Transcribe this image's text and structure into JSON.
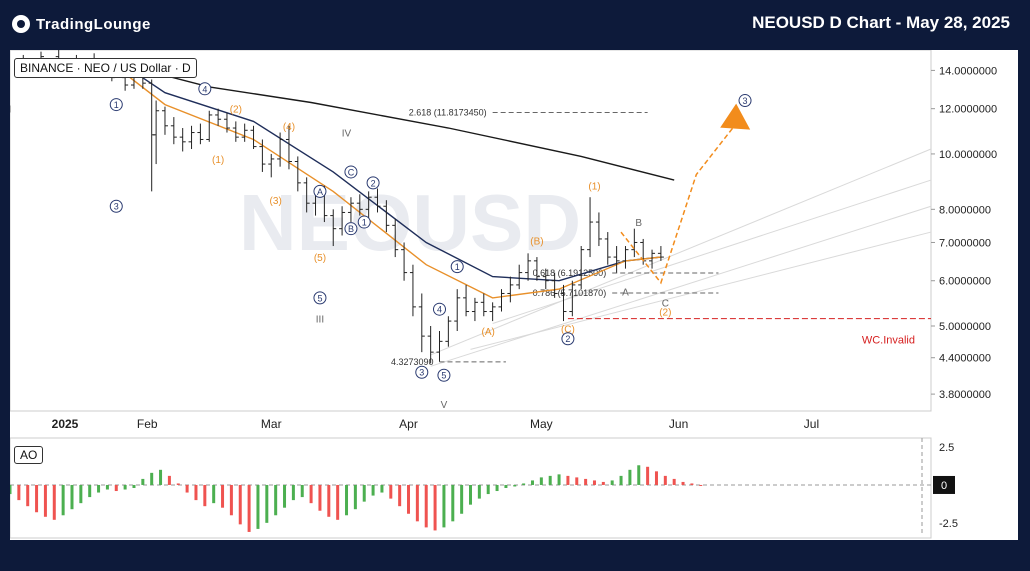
{
  "header": {
    "logo_text": "TradingLounge",
    "title": "NEOUSD D Chart - May 28, 2025"
  },
  "symbol_label": "BINANCE · NEO / US Dollar · D",
  "watermark": "NEOUSD",
  "indicator_label": "AO",
  "chart_data": {
    "type": "candlestick",
    "price_axis": {
      "scale": "log",
      "ticks": [
        "14.0000000",
        "12.0000000",
        "10.0000000",
        "8.0000000",
        "7.0000000",
        "6.0000000",
        "5.0000000",
        "4.4000000",
        "3.8000000"
      ],
      "tick_values": [
        14,
        12,
        10,
        8,
        7,
        6,
        5,
        4.4,
        3.8
      ],
      "ylim": [
        3.55,
        15.2
      ]
    },
    "time_axis": {
      "labels": [
        "2025",
        "Feb",
        "Mar",
        "Apr",
        "May",
        "Jun",
        "Jul"
      ],
      "xlim": [
        "2025-01-01",
        "2025-07-28"
      ]
    },
    "ao_axis": {
      "ticks": [
        "2.5",
        "0",
        "-2.5"
      ],
      "tick_values": [
        2.5,
        0,
        -2.5
      ],
      "ylim": [
        -3.5,
        3.1
      ]
    },
    "ohlc_series": [
      [
        "2025-01-04",
        14.3,
        14.9,
        14.0,
        14.6
      ],
      [
        "2025-01-08",
        14.6,
        15.1,
        14.2,
        14.8
      ],
      [
        "2025-01-12",
        14.8,
        15.2,
        14.1,
        14.4
      ],
      [
        "2025-01-16",
        14.4,
        14.9,
        13.9,
        14.6
      ],
      [
        "2025-01-20",
        14.6,
        15.0,
        14.0,
        14.3
      ],
      [
        "2025-01-24",
        14.3,
        14.7,
        13.4,
        13.6
      ],
      [
        "2025-01-27",
        13.6,
        13.9,
        12.9,
        13.2
      ],
      [
        "2025-01-29",
        13.2,
        14.2,
        13.0,
        13.9
      ],
      [
        "2025-01-31",
        13.9,
        14.1,
        13.0,
        13.3
      ],
      [
        "2025-02-02",
        13.3,
        13.5,
        8.6,
        10.8
      ],
      [
        "2025-02-03",
        10.8,
        12.4,
        9.6,
        11.9
      ],
      [
        "2025-02-05",
        11.9,
        12.1,
        10.8,
        11.2
      ],
      [
        "2025-02-07",
        11.2,
        11.6,
        10.4,
        10.7
      ],
      [
        "2025-02-09",
        10.7,
        11.1,
        10.1,
        10.5
      ],
      [
        "2025-02-11",
        10.5,
        11.2,
        10.2,
        10.9
      ],
      [
        "2025-02-13",
        10.9,
        11.3,
        10.4,
        10.6
      ],
      [
        "2025-02-15",
        10.6,
        11.9,
        10.5,
        11.7
      ],
      [
        "2025-02-17",
        11.7,
        12.0,
        11.2,
        11.5
      ],
      [
        "2025-02-19",
        11.5,
        11.8,
        10.9,
        11.1
      ],
      [
        "2025-02-21",
        11.1,
        11.4,
        10.5,
        10.7
      ],
      [
        "2025-02-23",
        10.7,
        11.3,
        10.5,
        11.0
      ],
      [
        "2025-02-25",
        11.0,
        11.2,
        10.2,
        10.3
      ],
      [
        "2025-02-27",
        10.3,
        10.6,
        9.3,
        9.6
      ],
      [
        "2025-03-01",
        9.6,
        10.0,
        9.1,
        9.8
      ],
      [
        "2025-03-03",
        9.8,
        10.9,
        9.5,
        10.6
      ],
      [
        "2025-03-05",
        10.6,
        11.2,
        9.4,
        9.7
      ],
      [
        "2025-03-07",
        9.7,
        9.9,
        8.6,
        8.9
      ],
      [
        "2025-03-09",
        8.9,
        9.1,
        7.9,
        8.2
      ],
      [
        "2025-03-11",
        8.2,
        8.7,
        7.8,
        8.5
      ],
      [
        "2025-03-13",
        8.5,
        8.8,
        7.6,
        7.8
      ],
      [
        "2025-03-15",
        7.8,
        8.0,
        6.9,
        7.4
      ],
      [
        "2025-03-17",
        7.4,
        8.1,
        7.2,
        7.9
      ],
      [
        "2025-03-19",
        7.9,
        8.4,
        7.6,
        8.2
      ],
      [
        "2025-03-21",
        8.2,
        8.5,
        7.8,
        8.0
      ],
      [
        "2025-03-23",
        8.0,
        8.6,
        7.7,
        8.4
      ],
      [
        "2025-03-25",
        8.4,
        8.7,
        7.9,
        8.1
      ],
      [
        "2025-03-27",
        8.1,
        8.3,
        7.3,
        7.5
      ],
      [
        "2025-03-29",
        7.5,
        7.7,
        6.6,
        6.8
      ],
      [
        "2025-03-31",
        6.8,
        7.0,
        6.0,
        6.2
      ],
      [
        "2025-04-02",
        6.2,
        6.4,
        5.2,
        5.4
      ],
      [
        "2025-04-04",
        5.4,
        5.7,
        4.5,
        4.8
      ],
      [
        "2025-04-06",
        4.8,
        5.0,
        4.3,
        4.5
      ],
      [
        "2025-04-08",
        4.5,
        4.9,
        4.33,
        4.7
      ],
      [
        "2025-04-10",
        4.7,
        5.2,
        4.6,
        5.1
      ],
      [
        "2025-04-12",
        5.1,
        5.8,
        4.9,
        5.6
      ],
      [
        "2025-04-14",
        5.6,
        5.9,
        5.2,
        5.3
      ],
      [
        "2025-04-16",
        5.3,
        5.6,
        5.1,
        5.5
      ],
      [
        "2025-04-18",
        5.5,
        5.7,
        5.2,
        5.3
      ],
      [
        "2025-04-20",
        5.3,
        5.5,
        5.1,
        5.4
      ],
      [
        "2025-04-22",
        5.4,
        5.8,
        5.3,
        5.7
      ],
      [
        "2025-04-24",
        5.7,
        6.1,
        5.5,
        5.9
      ],
      [
        "2025-04-26",
        5.9,
        6.4,
        5.8,
        6.2
      ],
      [
        "2025-04-28",
        6.2,
        6.7,
        6.0,
        6.5
      ],
      [
        "2025-04-30",
        6.5,
        6.6,
        6.0,
        6.1
      ],
      [
        "2025-05-02",
        6.1,
        6.3,
        5.8,
        6.0
      ],
      [
        "2025-05-04",
        6.0,
        6.2,
        5.6,
        5.7
      ],
      [
        "2025-05-06",
        5.7,
        5.9,
        5.1,
        5.3
      ],
      [
        "2025-05-08",
        5.3,
        6.0,
        5.2,
        5.9
      ],
      [
        "2025-05-10",
        5.9,
        6.9,
        5.8,
        6.8
      ],
      [
        "2025-05-12",
        6.8,
        8.4,
        6.6,
        7.6
      ],
      [
        "2025-05-14",
        7.6,
        7.9,
        6.9,
        7.1
      ],
      [
        "2025-05-16",
        7.1,
        7.3,
        6.4,
        6.6
      ],
      [
        "2025-05-18",
        6.6,
        6.9,
        6.2,
        6.5
      ],
      [
        "2025-05-20",
        6.5,
        6.9,
        6.3,
        6.8
      ],
      [
        "2025-05-22",
        6.8,
        7.4,
        6.6,
        7.0
      ],
      [
        "2025-05-24",
        7.0,
        7.1,
        6.4,
        6.5
      ],
      [
        "2025-05-26",
        6.5,
        6.8,
        6.3,
        6.7
      ],
      [
        "2025-05-28",
        6.7,
        6.9,
        6.5,
        6.6
      ]
    ],
    "moving_averages": [
      {
        "color": "#1a1a1a",
        "points": [
          [
            "2025-01-27",
            14.3
          ],
          [
            "2025-02-15",
            13.1
          ],
          [
            "2025-03-10",
            12.3
          ],
          [
            "2025-04-10",
            11.1
          ],
          [
            "2025-05-10",
            9.9
          ],
          [
            "2025-05-31",
            9.0
          ]
        ]
      },
      {
        "color": "#1f2e5a",
        "points": [
          [
            "2025-01-25",
            14.6
          ],
          [
            "2025-02-05",
            12.8
          ],
          [
            "2025-02-25",
            11.4
          ],
          [
            "2025-03-15",
            9.3
          ],
          [
            "2025-04-05",
            7.0
          ],
          [
            "2025-04-20",
            6.1
          ],
          [
            "2025-05-05",
            6.0
          ],
          [
            "2025-05-20",
            6.5
          ],
          [
            "2025-05-28",
            6.6
          ]
        ]
      },
      {
        "color": "#e8902a",
        "points": [
          [
            "2025-01-25",
            14.2
          ],
          [
            "2025-02-05",
            12.2
          ],
          [
            "2025-02-25",
            10.6
          ],
          [
            "2025-03-15",
            8.6
          ],
          [
            "2025-04-05",
            6.4
          ],
          [
            "2025-04-20",
            5.6
          ],
          [
            "2025-05-05",
            5.8
          ],
          [
            "2025-05-20",
            6.5
          ],
          [
            "2025-05-28",
            6.6
          ]
        ]
      }
    ],
    "channel_lines": [
      {
        "from": [
          "2025-04-06",
          4.45
        ],
        "to": [
          "2025-07-28",
          10.2
        ]
      },
      {
        "from": [
          "2025-04-20",
          5.05
        ],
        "to": [
          "2025-07-28",
          9.0
        ]
      },
      {
        "from": [
          "2025-04-06",
          4.25
        ],
        "to": [
          "2025-07-28",
          8.1
        ]
      },
      {
        "from": [
          "2025-04-15",
          4.55
        ],
        "to": [
          "2025-07-28",
          7.3
        ]
      }
    ],
    "projection_path": [
      [
        "2025-05-19",
        7.3
      ],
      [
        "2025-05-28",
        5.95
      ],
      [
        "2025-06-05",
        9.2
      ],
      [
        "2025-06-14",
        11.3
      ]
    ],
    "levels": [
      {
        "label": "2.618 (11.8173450)",
        "value": 11.817345,
        "from": "2025-04-20",
        "to": "2025-05-25",
        "color": "#666"
      },
      {
        "label": "0.618 (6.1912500)",
        "value": 6.19125,
        "from": "2025-05-17",
        "to": "2025-06-10",
        "color": "#666"
      },
      {
        "label": "0.786 (5.7101870)",
        "value": 5.710187,
        "from": "2025-05-17",
        "to": "2025-06-10",
        "color": "#666"
      },
      {
        "label": "4.3273090",
        "value": 4.327309,
        "from": "2025-04-08",
        "to": "2025-04-23",
        "color": "#666"
      }
    ],
    "invalidation": {
      "label": "WC.Invalid",
      "value": 5.15,
      "color": "#d62020"
    },
    "wave_labels": [
      {
        "text": "I",
        "x": "2025-01-01",
        "y": 12.0,
        "style": "plain"
      },
      {
        "text": "1",
        "x": "2025-01-25",
        "y": 12.2,
        "style": "circle"
      },
      {
        "text": "3",
        "x": "2025-01-25",
        "y": 8.1,
        "style": "circle"
      },
      {
        "text": "4",
        "x": "2025-02-14",
        "y": 13.0,
        "style": "circle"
      },
      {
        "text": "(2)",
        "x": "2025-02-21",
        "y": 12.0,
        "style": "orange"
      },
      {
        "text": "(4)",
        "x": "2025-03-05",
        "y": 11.2,
        "style": "orange"
      },
      {
        "text": "(1)",
        "x": "2025-02-17",
        "y": 9.8,
        "style": "orange"
      },
      {
        "text": "(3)",
        "x": "2025-03-02",
        "y": 8.3,
        "style": "orange"
      },
      {
        "text": "IV",
        "x": "2025-03-18",
        "y": 10.9,
        "style": "plain"
      },
      {
        "text": "C",
        "x": "2025-03-19",
        "y": 9.3,
        "style": "circle"
      },
      {
        "text": "2",
        "x": "2025-03-24",
        "y": 8.9,
        "style": "circle"
      },
      {
        "text": "A",
        "x": "2025-03-12",
        "y": 8.6,
        "style": "circle"
      },
      {
        "text": "B",
        "x": "2025-03-19",
        "y": 7.4,
        "style": "circle"
      },
      {
        "text": "1",
        "x": "2025-03-22",
        "y": 7.6,
        "style": "circle"
      },
      {
        "text": "(5)",
        "x": "2025-03-12",
        "y": 6.6,
        "style": "orange"
      },
      {
        "text": "5",
        "x": "2025-03-12",
        "y": 5.6,
        "style": "circle"
      },
      {
        "text": "III",
        "x": "2025-03-12",
        "y": 5.15,
        "style": "plain"
      },
      {
        "text": "1",
        "x": "2025-04-12",
        "y": 6.35,
        "style": "circle"
      },
      {
        "text": "4",
        "x": "2025-04-08",
        "y": 5.35,
        "style": "circle"
      },
      {
        "text": "(A)",
        "x": "2025-04-19",
        "y": 4.9,
        "style": "orange"
      },
      {
        "text": "(B)",
        "x": "2025-04-30",
        "y": 7.05,
        "style": "orange"
      },
      {
        "text": "3",
        "x": "2025-04-04",
        "y": 4.15,
        "style": "circle"
      },
      {
        "text": "5",
        "x": "2025-04-09",
        "y": 4.1,
        "style": "circle"
      },
      {
        "text": "V",
        "x": "2025-04-09",
        "y": 3.65,
        "style": "plain"
      },
      {
        "text": "(C)",
        "x": "2025-05-07",
        "y": 4.95,
        "style": "orange"
      },
      {
        "text": "2",
        "x": "2025-05-07",
        "y": 4.75,
        "style": "circle"
      },
      {
        "text": "(1)",
        "x": "2025-05-13",
        "y": 8.8,
        "style": "orange"
      },
      {
        "text": "B",
        "x": "2025-05-23",
        "y": 7.6,
        "style": "plain"
      },
      {
        "text": "A",
        "x": "2025-05-20",
        "y": 5.75,
        "style": "plain"
      },
      {
        "text": "C",
        "x": "2025-05-29",
        "y": 5.5,
        "style": "plain"
      },
      {
        "text": "(2)",
        "x": "2025-05-29",
        "y": 5.3,
        "style": "orange"
      },
      {
        "text": "3",
        "x": "2025-06-16",
        "y": 12.4,
        "style": "circle"
      }
    ],
    "ao_series": {
      "start": "2025-01-01",
      "step_days": 2,
      "values": [
        -0.6,
        -1.0,
        -1.4,
        -1.8,
        -2.1,
        -2.3,
        -2.0,
        -1.6,
        -1.2,
        -0.8,
        -0.5,
        -0.3,
        -0.4,
        -0.3,
        -0.2,
        0.4,
        0.8,
        1.0,
        0.6,
        0.1,
        -0.5,
        -1.0,
        -1.4,
        -1.2,
        -1.5,
        -2.0,
        -2.6,
        -3.1,
        -2.9,
        -2.5,
        -2.0,
        -1.5,
        -1.0,
        -0.8,
        -1.2,
        -1.7,
        -2.1,
        -2.3,
        -2.0,
        -1.6,
        -1.1,
        -0.7,
        -0.5,
        -0.9,
        -1.4,
        -1.9,
        -2.4,
        -2.8,
        -3.0,
        -2.8,
        -2.4,
        -1.9,
        -1.3,
        -0.9,
        -0.6,
        -0.4,
        -0.2,
        -0.1,
        0.1,
        0.3,
        0.5,
        0.6,
        0.7,
        0.6,
        0.5,
        0.4,
        0.3,
        0.2,
        0.3,
        0.6,
        1.0,
        1.3,
        1.2,
        0.9,
        0.6,
        0.4,
        0.2,
        0.1,
        0.0
      ]
    }
  }
}
